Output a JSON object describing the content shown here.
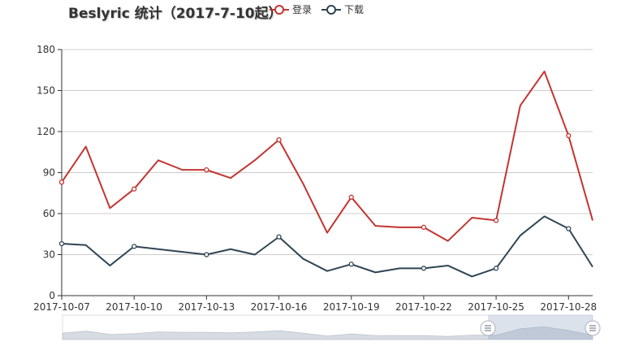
{
  "chart_data": {
    "type": "line",
    "title": "Beslyric 统计（2017-7-10起）",
    "legend_position": "top",
    "x": [
      "2017-10-07",
      "2017-10-08",
      "2017-10-09",
      "2017-10-10",
      "2017-10-11",
      "2017-10-12",
      "2017-10-13",
      "2017-10-14",
      "2017-10-15",
      "2017-10-16",
      "2017-10-17",
      "2017-10-18",
      "2017-10-19",
      "2017-10-20",
      "2017-10-21",
      "2017-10-22",
      "2017-10-23",
      "2017-10-24",
      "2017-10-25",
      "2017-10-26",
      "2017-10-27",
      "2017-10-28",
      "2017-10-29"
    ],
    "x_tick_labels": [
      "2017-10-07",
      "2017-10-10",
      "2017-10-13",
      "2017-10-16",
      "2017-10-19",
      "2017-10-22",
      "2017-10-25",
      "2017-10-28"
    ],
    "series": [
      {
        "name": "登录",
        "color": "#c23531",
        "values": [
          83,
          109,
          64,
          78,
          99,
          92,
          92,
          86,
          99,
          114,
          82,
          46,
          72,
          51,
          50,
          50,
          40,
          57,
          55,
          139,
          164,
          117,
          55
        ]
      },
      {
        "name": "下载",
        "color": "#2f4554",
        "values": [
          38,
          37,
          22,
          36,
          34,
          32,
          30,
          34,
          30,
          43,
          27,
          18,
          23,
          17,
          20,
          20,
          22,
          14,
          20,
          44,
          58,
          49,
          21
        ]
      }
    ],
    "ylim": [
      0,
      180
    ],
    "y_ticks": [
      0,
      30,
      60,
      90,
      120,
      150,
      180
    ],
    "grid": true,
    "xlabel": "",
    "ylabel": ""
  },
  "legend": {
    "login": "登录",
    "download": "下载"
  },
  "zoom": {
    "handle_start_icon": "slider-handle-icon",
    "handle_end_icon": "slider-handle-icon"
  }
}
